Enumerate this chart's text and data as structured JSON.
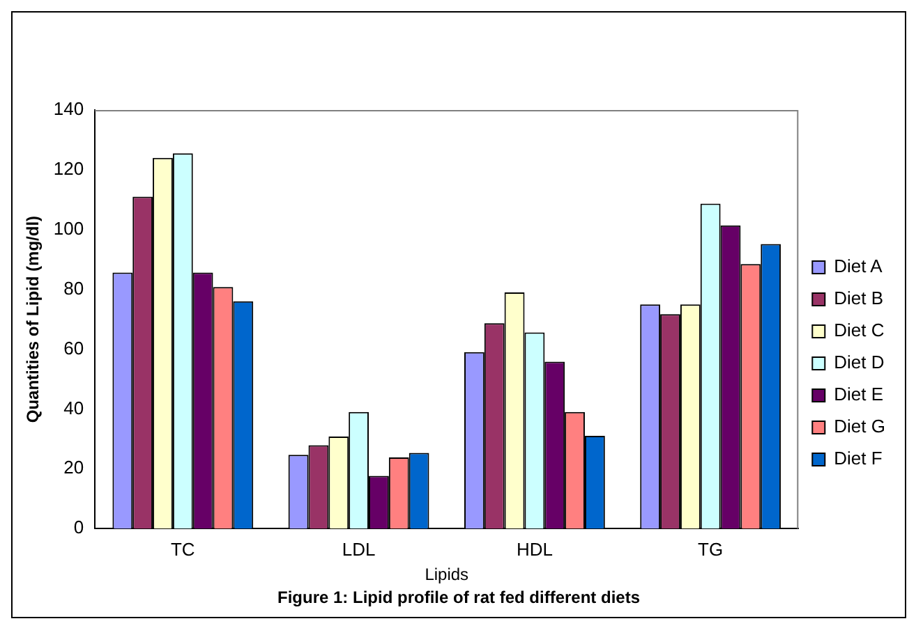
{
  "chart_data": {
    "type": "bar",
    "title": "Figure 1: Lipid profile of rat fed different diets",
    "xlabel": "Lipids",
    "ylabel": "Quantities of Lipid (mg/dl)",
    "categories": [
      "TC",
      "LDL",
      "HDL",
      "TG"
    ],
    "series": [
      {
        "name": "Diet A",
        "color": "#9999ff",
        "values": [
          85.6,
          24.7,
          59,
          75
        ]
      },
      {
        "name": "Diet B",
        "color": "#993366",
        "values": [
          111,
          27.9,
          68.7,
          71.7
        ]
      },
      {
        "name": "Diet C",
        "color": "#ffffcc",
        "values": [
          124,
          30.8,
          79,
          75
        ]
      },
      {
        "name": "Diet D",
        "color": "#ccffff",
        "values": [
          125.5,
          39,
          65.6,
          108.7
        ]
      },
      {
        "name": "Diet E",
        "color": "#660066",
        "values": [
          85.6,
          17.6,
          55.8,
          101.4
        ]
      },
      {
        "name": "Diet G",
        "color": "#ff8080",
        "values": [
          80.8,
          23.8,
          39,
          88.5
        ]
      },
      {
        "name": "Diet F",
        "color": "#0066cc",
        "values": [
          76,
          25.3,
          31,
          95.2
        ]
      }
    ],
    "ylim": [
      0,
      140
    ],
    "yticks": [
      0,
      20,
      40,
      60,
      80,
      100,
      120,
      140
    ],
    "grid": false,
    "legend": "right"
  }
}
